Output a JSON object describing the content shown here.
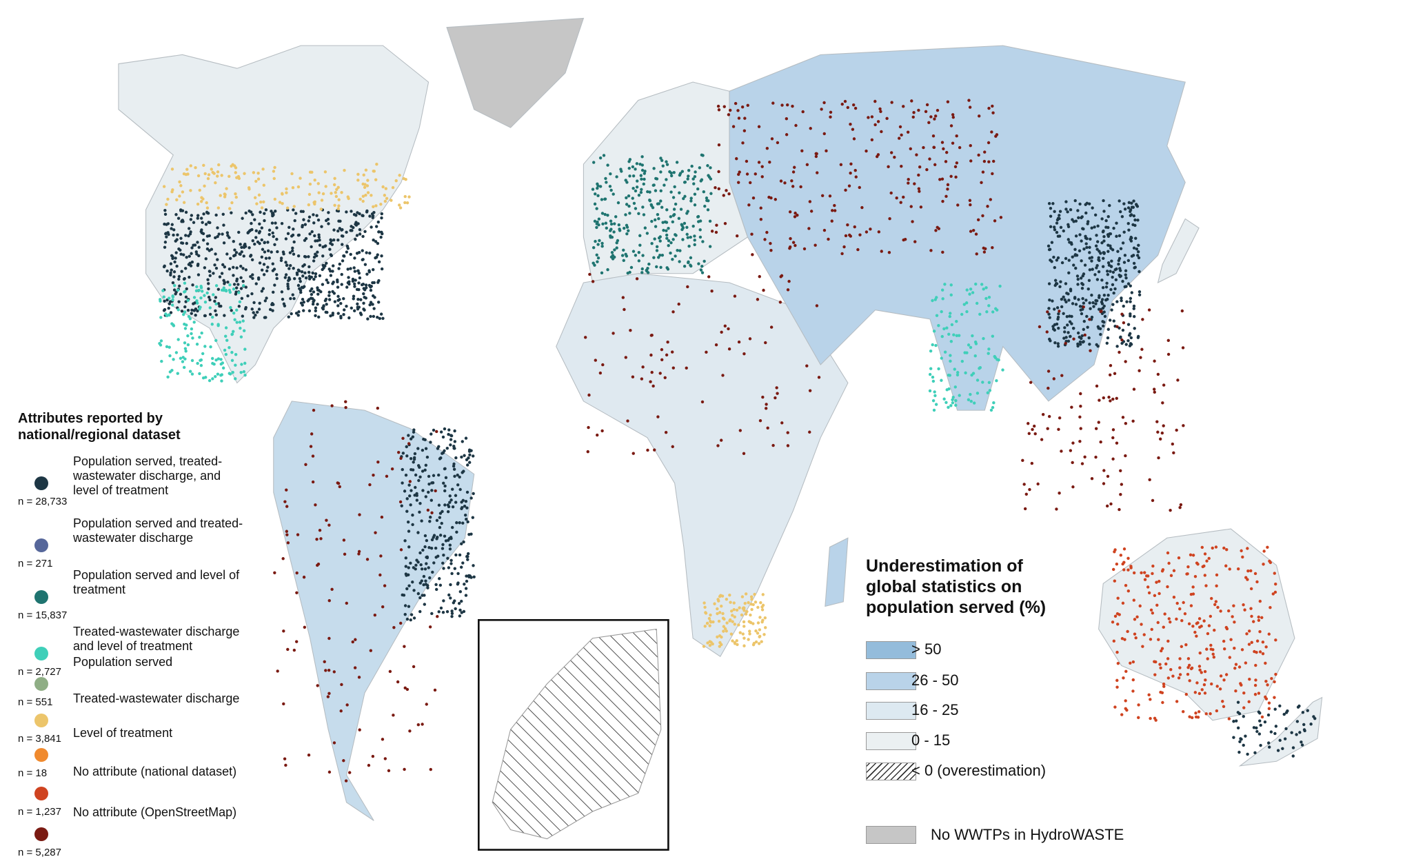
{
  "legend_attributes": {
    "title": "Attributes reported by national/regional dataset",
    "items": [
      {
        "label": "Population served, treated-wastewater discharge, and level of treatment",
        "count": "n = 28,733",
        "color": "#1d3644"
      },
      {
        "label": "Population served and treated-wastewater discharge",
        "count": "n = 271",
        "color": "#56679a"
      },
      {
        "label": "Population served and level of treatment",
        "count": "n = 15,837",
        "color": "#1f7470"
      },
      {
        "label": "Treated-wastewater discharge and level of treatment",
        "count": "n = 2,727",
        "color": "#3fcfb9"
      },
      {
        "label": "Population served",
        "count": "n = 551",
        "color": "#8fae85"
      },
      {
        "label": "Treated-wastewater discharge",
        "count": "n = 3,841",
        "color": "#ecc56b"
      },
      {
        "label": "Level of treatment",
        "count": "n = 18",
        "color": "#f08a2e"
      },
      {
        "label": "No attribute (national dataset)",
        "count": "n = 1,237",
        "color": "#cf4320"
      },
      {
        "label": "No attribute (OpenStreetMap)",
        "count": "n = 5,287",
        "color": "#7a1a12"
      }
    ]
  },
  "legend_underestimation": {
    "title": "Underestimation of global statistics on population served (%)",
    "items": [
      {
        "label": "> 50",
        "color": "#94bcdb"
      },
      {
        "label": "26 - 50",
        "color": "#b9d3e9"
      },
      {
        "label": "16 - 25",
        "color": "#dde9f1"
      },
      {
        "label": "0 - 15",
        "color": "#ebf0f2"
      },
      {
        "label": "< 0 (overestimation)",
        "color": "hatch"
      }
    ]
  },
  "no_wwtps": {
    "label": "No WWTPs in HydroWASTE",
    "color": "#c6c6c6"
  }
}
